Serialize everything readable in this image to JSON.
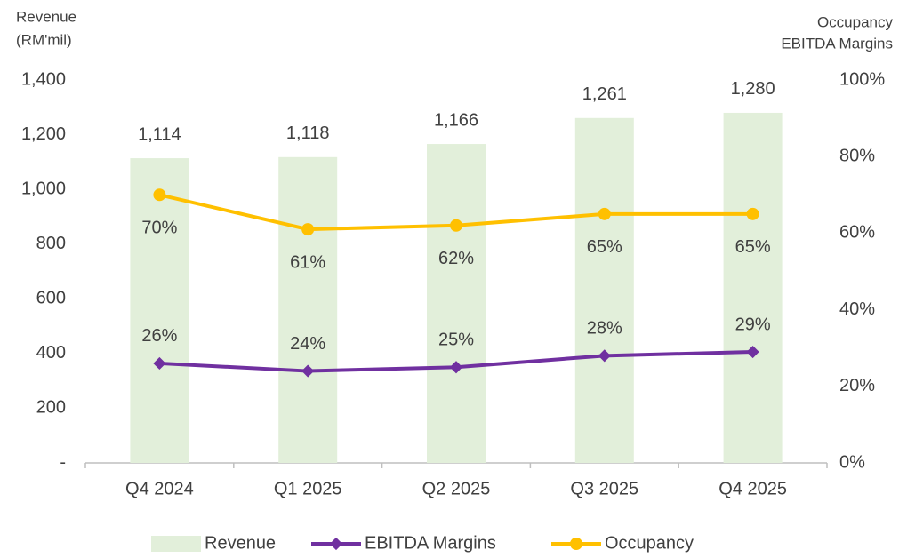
{
  "chart_data": {
    "type": "combo",
    "y_label": [
      "Revenue",
      "(RM'mil)"
    ],
    "y2_label": [
      "Occupancy",
      "EBITDA Margins"
    ],
    "categories": [
      "Q4 2024",
      "Q1 2025",
      "Q2 2025",
      "Q3 2025",
      "Q4 2025"
    ],
    "series": [
      {
        "name": "Revenue",
        "type": "bar",
        "axis": "y",
        "color": "#e2efda",
        "values": [
          1114,
          1118,
          1166,
          1261,
          1280
        ],
        "value_labels": [
          "1,114",
          "1,118",
          "1,166",
          "1,261",
          "1,280"
        ]
      },
      {
        "name": "EBITDA Margins",
        "type": "line",
        "axis": "y2",
        "marker": "diamond",
        "color": "#7030a0",
        "values": [
          26,
          24,
          25,
          28,
          29
        ],
        "value_labels": [
          "26%",
          "24%",
          "25%",
          "28%",
          "29%"
        ]
      },
      {
        "name": "Occupancy",
        "type": "line",
        "axis": "y2",
        "marker": "circle",
        "color": "#ffc000",
        "values": [
          70,
          61,
          62,
          65,
          65
        ],
        "value_labels": [
          "70%",
          "61%",
          "62%",
          "65%",
          "65%"
        ]
      }
    ],
    "ylim": [
      0,
      1400
    ],
    "yticks": [
      {
        "value": 0,
        "label": "-"
      },
      200,
      400,
      600,
      800,
      {
        "value": 1000,
        "label": "1,000"
      },
      {
        "value": 1200,
        "label": "1,200"
      },
      {
        "value": 1400,
        "label": "1,400"
      }
    ],
    "y2lim": [
      0,
      100
    ],
    "y2ticks": [
      {
        "value": 0,
        "label": "0%"
      },
      {
        "value": 20,
        "label": "20%"
      },
      {
        "value": 40,
        "label": "40%"
      },
      {
        "value": 60,
        "label": "60%"
      },
      {
        "value": 80,
        "label": "80%"
      },
      {
        "value": 100,
        "label": "100%"
      }
    ],
    "legend": "bottom"
  }
}
